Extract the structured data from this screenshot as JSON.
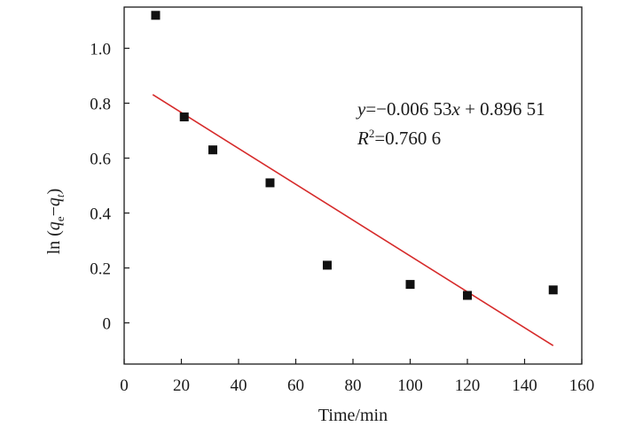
{
  "chart_data": {
    "type": "scatter",
    "xlabel": "Time/min",
    "ylabel": "ln (qe−qt)",
    "xlim": [
      0,
      160
    ],
    "ylim": [
      -0.15,
      1.15
    ],
    "xticks": [
      0,
      20,
      40,
      60,
      80,
      100,
      120,
      140,
      160
    ],
    "yticks": [
      0,
      0.2,
      0.4,
      0.6,
      0.8,
      1.0
    ],
    "ytick_labels": [
      "0",
      "0.2",
      "0.4",
      "0.6",
      "0.8",
      "1.0"
    ],
    "grid": false,
    "series": [
      {
        "x": [
          11,
          21,
          31,
          51,
          71,
          100,
          120,
          150
        ],
        "y": [
          1.12,
          0.75,
          0.63,
          0.51,
          0.21,
          0.14,
          0.1,
          0.12
        ]
      }
    ],
    "fit": {
      "slope": -0.00653,
      "intercept": 0.89651,
      "x_range": [
        10,
        150
      ]
    },
    "annotations": {
      "equation": "y=−0.006 53x + 0.896 51",
      "r2": "R²=0.760 6"
    },
    "colors": {
      "marker": "#111111",
      "fit_line": "#d62a2a",
      "axis": "#1a1a1a"
    }
  }
}
